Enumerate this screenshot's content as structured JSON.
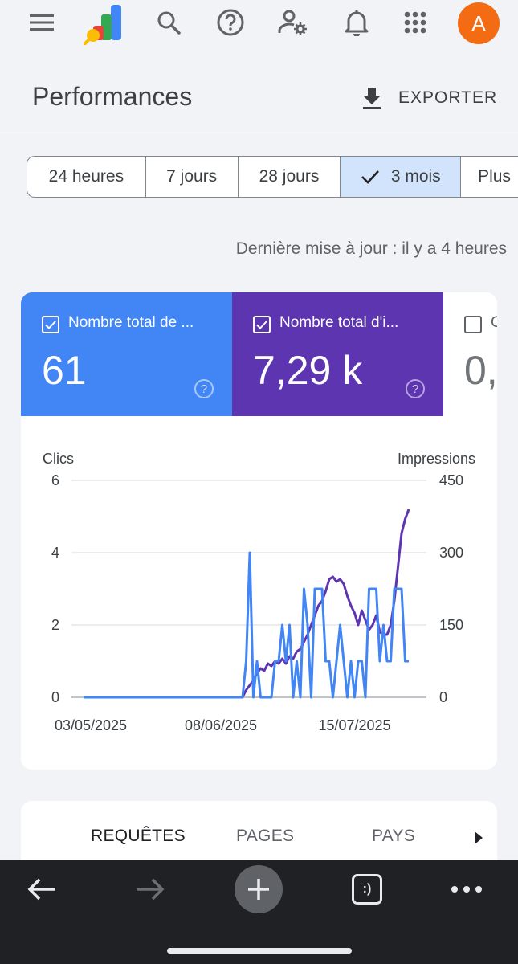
{
  "header": {
    "icons": [
      "menu-icon",
      "analytics-logo",
      "search-icon",
      "help-icon",
      "manage-users-icon",
      "notifications-icon",
      "apps-icon"
    ],
    "avatar_letter": "A"
  },
  "page": {
    "title": "Performances",
    "export_label": "EXPORTER"
  },
  "range_chips": [
    {
      "label": "24 heures",
      "selected": false
    },
    {
      "label": "7 jours",
      "selected": false
    },
    {
      "label": "28 jours",
      "selected": false
    },
    {
      "label": "3 mois",
      "selected": true
    },
    {
      "label": "Plus",
      "selected": false
    }
  ],
  "last_updated": "Dernière mise à jour : il y a 4 heures",
  "metrics": [
    {
      "label": "Nombre total de ...",
      "value": "61",
      "checked": true,
      "color": "#4285f4"
    },
    {
      "label": "Nombre total d'i...",
      "value": "7,29 k",
      "checked": true,
      "color": "#5e35b1"
    },
    {
      "label": "C",
      "value": "0,",
      "checked": false,
      "color": "#ffffff"
    }
  ],
  "chart_data": {
    "type": "line",
    "left_axis_title": "Clics",
    "right_axis_title": "Impressions",
    "left_ylim": [
      0,
      6
    ],
    "right_ylim": [
      0,
      450
    ],
    "left_ticks": [
      "0",
      "2",
      "4",
      "6"
    ],
    "right_ticks": [
      "0",
      "150",
      "300",
      "450"
    ],
    "x_tick_labels": [
      "03/05/2025",
      "08/06/2025",
      "15/07/2025"
    ],
    "x_tick_days": [
      2,
      38,
      75
    ],
    "x_range_days": [
      0,
      92
    ],
    "series": [
      {
        "axis": "left",
        "color": "#4285f4",
        "x": [
          0,
          10,
          20,
          30,
          40,
          44,
          45,
          46,
          47,
          48,
          49,
          50,
          51,
          52,
          53,
          54,
          55,
          56,
          57,
          58,
          59,
          60,
          61,
          62,
          63,
          64,
          65,
          66,
          67,
          68,
          69,
          70,
          71,
          72,
          73,
          74,
          75,
          76,
          77,
          78,
          79,
          80,
          81,
          82,
          83,
          84,
          85,
          86,
          87,
          88,
          89,
          90
        ],
        "values": [
          0,
          0,
          0,
          0,
          0,
          0,
          1,
          4,
          0,
          1,
          0,
          0,
          0,
          0,
          1,
          1,
          2,
          1,
          2,
          0,
          1,
          0,
          3,
          2,
          0,
          3,
          3,
          3,
          1,
          1,
          0,
          1,
          2,
          1,
          0,
          1,
          0,
          1,
          1,
          0,
          3,
          3,
          3,
          1,
          2,
          1,
          1,
          3,
          3,
          3,
          1,
          1
        ]
      },
      {
        "axis": "right",
        "color": "#5e35b1",
        "x": [
          0,
          10,
          20,
          30,
          40,
          44,
          45,
          46,
          47,
          48,
          49,
          50,
          51,
          52,
          53,
          54,
          55,
          56,
          57,
          58,
          59,
          60,
          61,
          62,
          63,
          64,
          65,
          66,
          67,
          68,
          69,
          70,
          71,
          72,
          73,
          74,
          75,
          76,
          77,
          78,
          79,
          80,
          81,
          82,
          83,
          84,
          85,
          86,
          87,
          88,
          89,
          90
        ],
        "values": [
          0,
          0,
          0,
          0,
          0,
          0,
          15,
          25,
          35,
          50,
          60,
          55,
          70,
          65,
          75,
          70,
          80,
          70,
          85,
          80,
          95,
          100,
          115,
          130,
          150,
          170,
          190,
          200,
          220,
          245,
          250,
          240,
          245,
          235,
          210,
          190,
          175,
          150,
          180,
          160,
          140,
          150,
          170,
          135,
          130,
          130,
          150,
          200,
          270,
          340,
          370,
          390
        ]
      }
    ]
  },
  "tabs": [
    {
      "label": "REQUÊTES",
      "active": true
    },
    {
      "label": "PAGES",
      "active": false
    },
    {
      "label": "PAYS",
      "active": false
    }
  ],
  "browser_bar": {
    "icons": [
      "back-icon",
      "forward-icon",
      "new-tab-icon",
      "tabs-icon",
      "more-icon"
    ],
    "tabs_glyph": ":)"
  }
}
